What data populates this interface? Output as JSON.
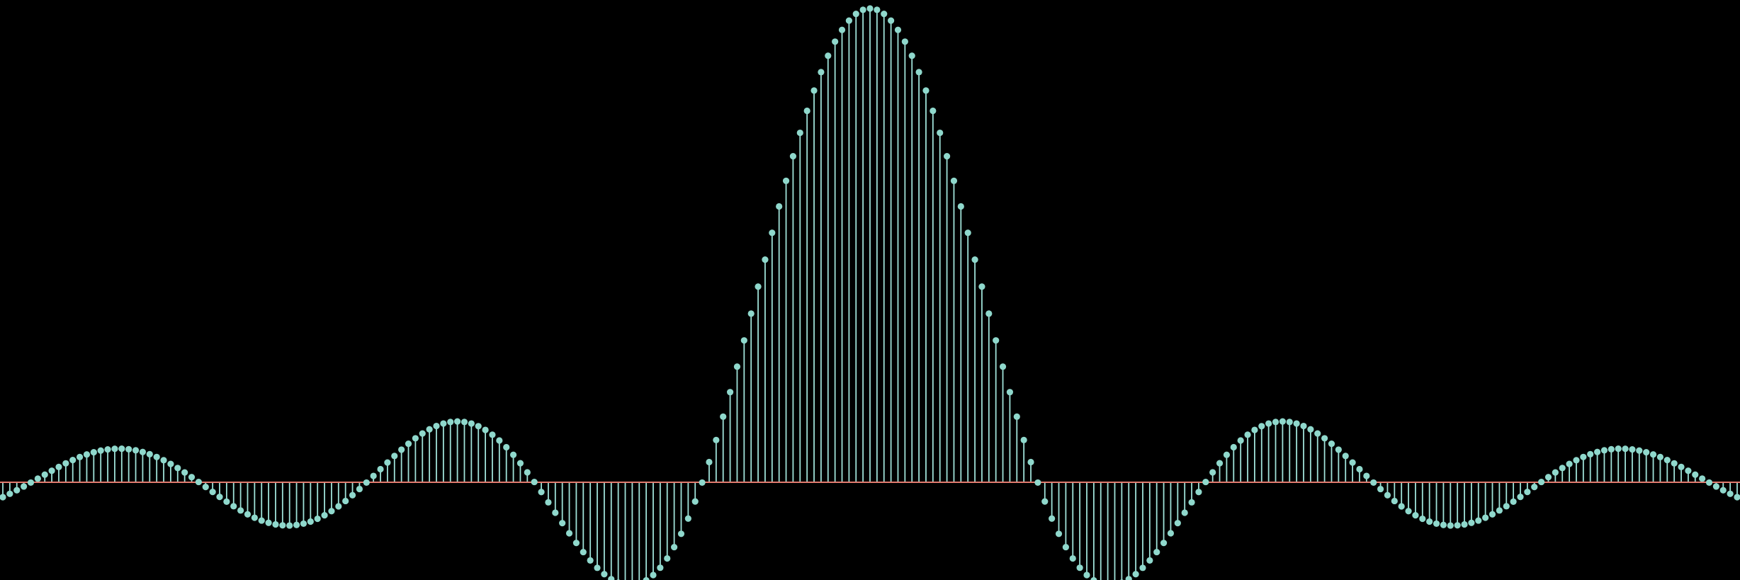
{
  "colors": {
    "background": "#000000",
    "stem": "#9fe1d8",
    "marker": "#8fd8cc",
    "baseline": "#e07a6e"
  },
  "chart_data": {
    "type": "stem",
    "title": "",
    "xlabel": "",
    "ylabel": "",
    "function": "sinc",
    "x_range": [
      -5.17,
      5.17
    ],
    "sample_count": 249,
    "baseline": 0,
    "ylim": [
      -0.235,
      1.02
    ],
    "grid": false,
    "legend": "none",
    "y_peak": 1.0,
    "y_min": -0.217
  }
}
